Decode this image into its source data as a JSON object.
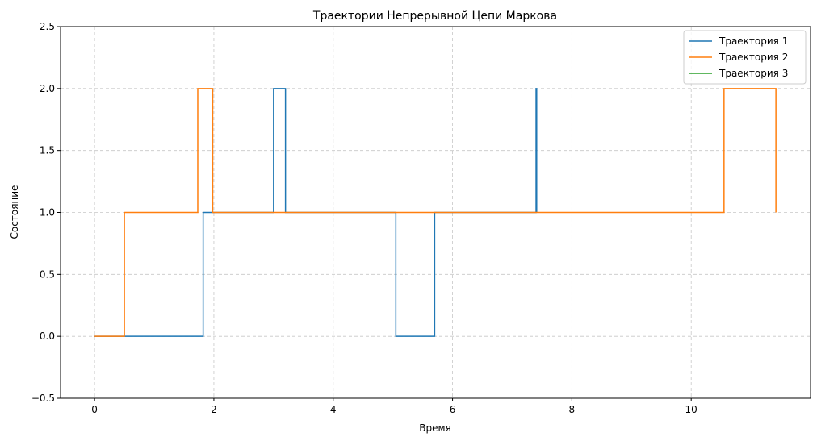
{
  "chart_data": {
    "type": "line",
    "step": "post",
    "title": "Траектории Непрерывной Цепи Маркова",
    "xlabel": "Время",
    "ylabel": "Состояние",
    "xlim": [
      -0.57,
      12.0
    ],
    "ylim": [
      -0.5,
      2.5
    ],
    "xticks": [
      0,
      2,
      4,
      6,
      8,
      10
    ],
    "yticks": [
      -0.5,
      0.0,
      0.5,
      1.0,
      1.5,
      2.0,
      2.5
    ],
    "xtick_labels": [
      "0",
      "2",
      "4",
      "6",
      "8",
      "10"
    ],
    "ytick_labels": [
      "−0.5",
      "0.0",
      "0.5",
      "1.0",
      "1.5",
      "2.0",
      "2.5"
    ],
    "grid": true,
    "legend_position": "top-right",
    "series": [
      {
        "name": "Траектория 1",
        "color": "#1f77b4",
        "x": [
          0,
          0.5,
          1.82,
          1.99,
          3.0,
          3.2,
          5.05,
          5.7,
          7.4,
          7.41
        ],
        "y": [
          0,
          0,
          1,
          1,
          2,
          1,
          0,
          1,
          2,
          1
        ]
      },
      {
        "name": "Траектория 2",
        "color": "#ff7f0e",
        "x": [
          0,
          0.5,
          1.73,
          1.98,
          10.55,
          11.42
        ],
        "y": [
          0,
          1,
          2,
          1,
          2,
          1
        ]
      },
      {
        "name": "Траектория 3",
        "color": "#2ca02c",
        "x": [],
        "y": []
      }
    ]
  }
}
